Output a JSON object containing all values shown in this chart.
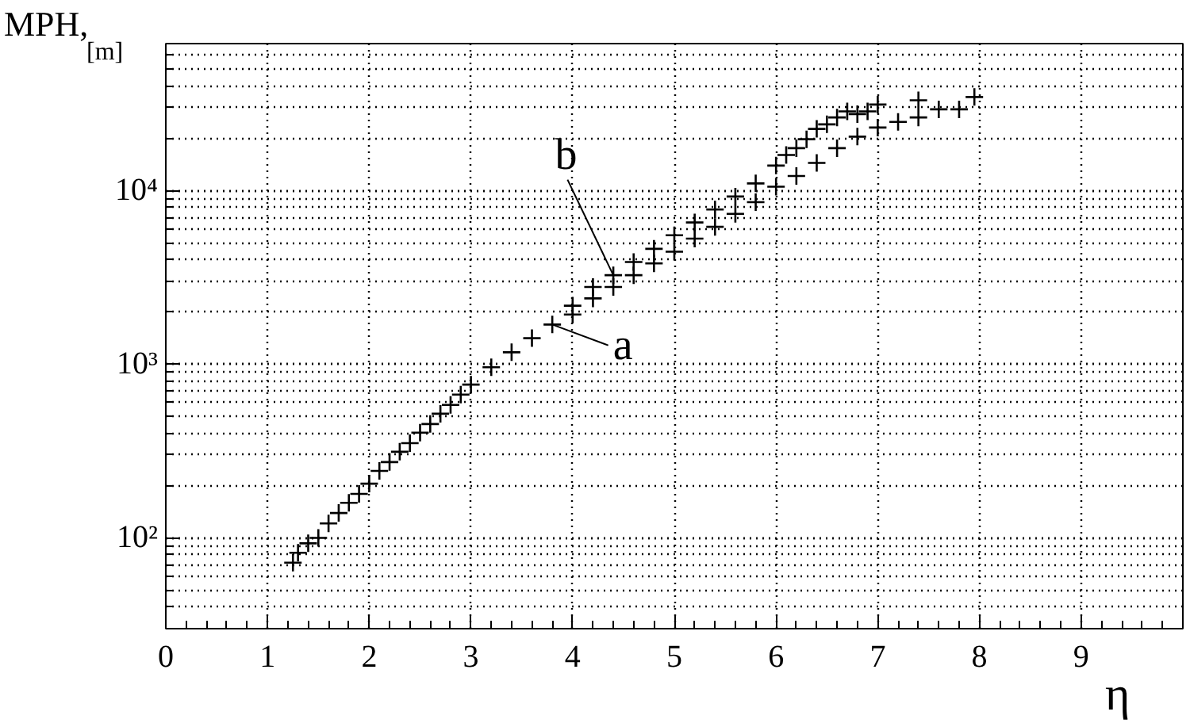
{
  "chart_data": {
    "type": "scatter",
    "ylabel": "MPH,\n[m]",
    "xlabel": "η",
    "xlim": [
      0,
      10
    ],
    "xticks": [
      0,
      1,
      2,
      3,
      4,
      5,
      6,
      7,
      8,
      9
    ],
    "ylim": [
      30,
      70000
    ],
    "yticks": [
      {
        "value": 100,
        "label": "10²"
      },
      {
        "value": 1000,
        "label": "10³"
      },
      {
        "value": 10000,
        "label": "10⁴"
      }
    ],
    "log": "y",
    "grid": true,
    "marker": "cross",
    "series": [
      {
        "name": "a",
        "color": "#000000",
        "x": [
          1.25,
          1.3,
          1.4,
          1.5,
          1.6,
          1.7,
          1.8,
          1.9,
          2.0,
          2.1,
          2.2,
          2.3,
          2.4,
          2.5,
          2.6,
          2.7,
          2.8,
          2.9,
          3.0,
          3.2,
          3.4,
          3.6,
          3.8,
          4.0,
          4.2,
          4.4,
          4.6,
          4.8,
          5.0,
          5.2,
          5.4,
          5.6,
          5.8,
          6.0,
          6.2,
          6.4,
          6.6,
          6.8,
          7.0,
          7.2,
          7.4
        ],
        "values": [
          72,
          82,
          93,
          100,
          121,
          139,
          159,
          179,
          205,
          243,
          273,
          313,
          351,
          403,
          452,
          518,
          582,
          668,
          762,
          960,
          1170,
          1410,
          1690,
          1930,
          2390,
          2780,
          3250,
          3800,
          4440,
          5280,
          6170,
          7330,
          8560,
          10500,
          12100,
          14400,
          17500,
          20400,
          23000,
          24800,
          26300
        ]
      },
      {
        "name": "b",
        "color": "#000000",
        "x": [
          4.0,
          4.2,
          4.4,
          4.6,
          4.8,
          5.0,
          5.2,
          5.4,
          5.6,
          5.8,
          6.0,
          6.1,
          6.2,
          6.3,
          6.4,
          6.5,
          6.6,
          6.7,
          6.8,
          6.9,
          7.0,
          7.4,
          7.6,
          7.8,
          7.95
        ],
        "values": [
          2170,
          2780,
          3250,
          3870,
          4610,
          5520,
          6540,
          7770,
          9220,
          10970,
          13900,
          16000,
          17500,
          19700,
          22600,
          24000,
          26300,
          28500,
          27500,
          28500,
          31200,
          33000,
          29300,
          29300,
          34500
        ]
      }
    ]
  }
}
